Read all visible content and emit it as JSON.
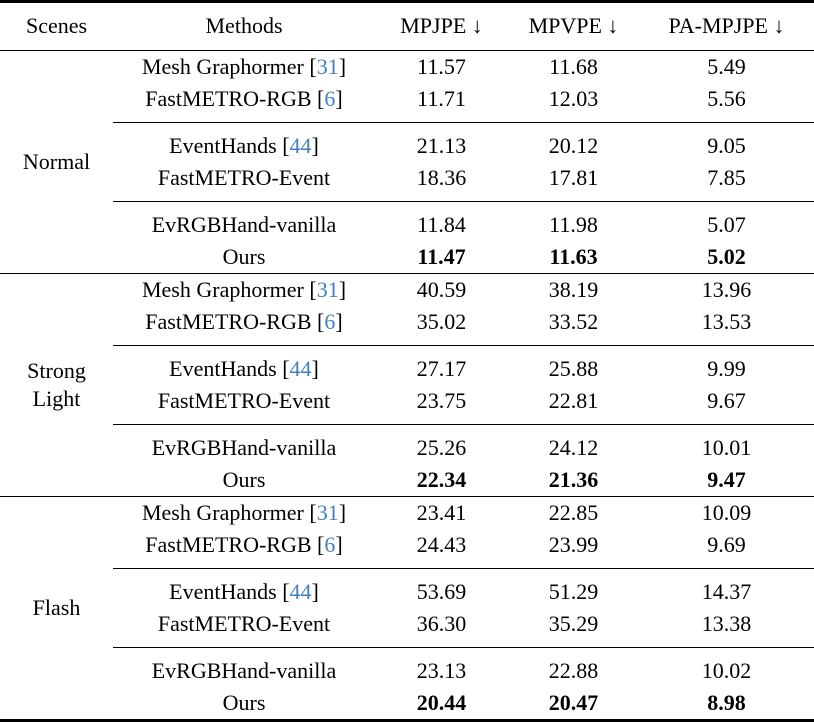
{
  "page": {
    "background": "#ffffff",
    "text_color": "#000000",
    "rule_color": "#000000",
    "citation_color": "#4080bf"
  },
  "table": {
    "columns": [
      "Scenes",
      "Methods",
      "MPJPE ↓",
      "MPVPE ↓",
      "PA-MPJPE ↓"
    ],
    "groups": [
      {
        "scene": "Normal",
        "subgroups": [
          {
            "rows": [
              {
                "method": "Mesh Graphormer",
                "cite": "31",
                "values": [
                  "11.57",
                  "11.68",
                  "5.49"
                ],
                "bold": false
              },
              {
                "method": "FastMETRO-RGB",
                "cite": "6",
                "values": [
                  "11.71",
                  "12.03",
                  "5.56"
                ],
                "bold": false
              }
            ]
          },
          {
            "rows": [
              {
                "method": "EventHands",
                "cite": "44",
                "values": [
                  "21.13",
                  "20.12",
                  "9.05"
                ],
                "bold": false
              },
              {
                "method": "FastMETRO-Event",
                "cite": null,
                "values": [
                  "18.36",
                  "17.81",
                  "7.85"
                ],
                "bold": false
              }
            ]
          },
          {
            "rows": [
              {
                "method": "EvRGBHand-vanilla",
                "cite": null,
                "values": [
                  "11.84",
                  "11.98",
                  "5.07"
                ],
                "bold": false
              },
              {
                "method": "Ours",
                "cite": null,
                "values": [
                  "11.47",
                  "11.63",
                  "5.02"
                ],
                "bold": true
              }
            ]
          }
        ]
      },
      {
        "scene": "Strong Light",
        "subgroups": [
          {
            "rows": [
              {
                "method": "Mesh Graphormer",
                "cite": "31",
                "values": [
                  "40.59",
                  "38.19",
                  "13.96"
                ],
                "bold": false
              },
              {
                "method": "FastMETRO-RGB",
                "cite": "6",
                "values": [
                  "35.02",
                  "33.52",
                  "13.53"
                ],
                "bold": false
              }
            ]
          },
          {
            "rows": [
              {
                "method": "EventHands",
                "cite": "44",
                "values": [
                  "27.17",
                  "25.88",
                  "9.99"
                ],
                "bold": false
              },
              {
                "method": "FastMETRO-Event",
                "cite": null,
                "values": [
                  "23.75",
                  "22.81",
                  "9.67"
                ],
                "bold": false
              }
            ]
          },
          {
            "rows": [
              {
                "method": "EvRGBHand-vanilla",
                "cite": null,
                "values": [
                  "25.26",
                  "24.12",
                  "10.01"
                ],
                "bold": false
              },
              {
                "method": "Ours",
                "cite": null,
                "values": [
                  "22.34",
                  "21.36",
                  "9.47"
                ],
                "bold": true
              }
            ]
          }
        ]
      },
      {
        "scene": "Flash",
        "subgroups": [
          {
            "rows": [
              {
                "method": "Mesh Graphormer",
                "cite": "31",
                "values": [
                  "23.41",
                  "22.85",
                  "10.09"
                ],
                "bold": false
              },
              {
                "method": "FastMETRO-RGB",
                "cite": "6",
                "values": [
                  "24.43",
                  "23.99",
                  "9.69"
                ],
                "bold": false
              }
            ]
          },
          {
            "rows": [
              {
                "method": "EventHands",
                "cite": "44",
                "values": [
                  "53.69",
                  "51.29",
                  "14.37"
                ],
                "bold": false
              },
              {
                "method": "FastMETRO-Event",
                "cite": null,
                "values": [
                  "36.30",
                  "35.29",
                  "13.38"
                ],
                "bold": false
              }
            ]
          },
          {
            "rows": [
              {
                "method": "EvRGBHand-vanilla",
                "cite": null,
                "values": [
                  "23.13",
                  "22.88",
                  "10.02"
                ],
                "bold": false
              },
              {
                "method": "Ours",
                "cite": null,
                "values": [
                  "20.44",
                  "20.47",
                  "8.98"
                ],
                "bold": true
              }
            ]
          }
        ]
      }
    ]
  }
}
